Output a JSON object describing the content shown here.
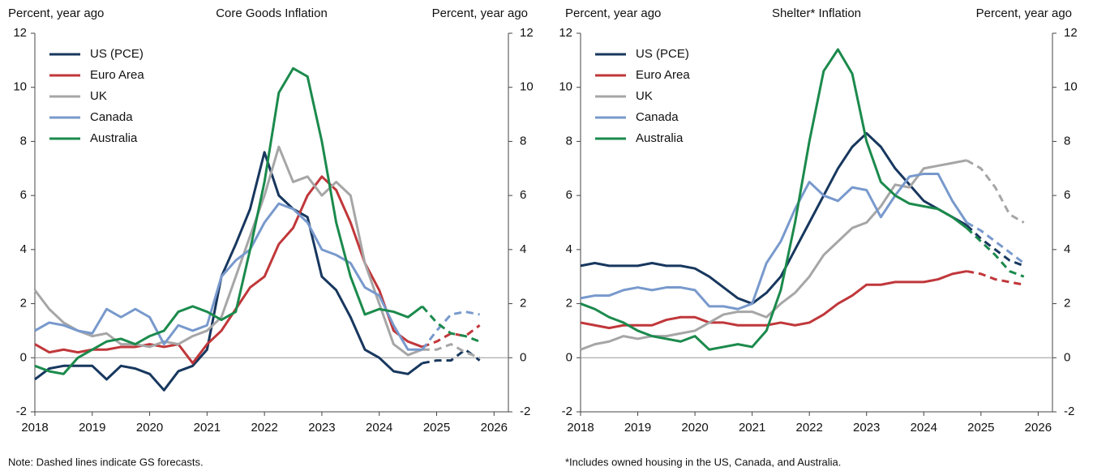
{
  "chart_data": [
    {
      "type": "line",
      "title": "Core Goods Inflation",
      "y_label": "Percent, year ago",
      "y2_label": "Percent, year ago",
      "note": "Note: Dashed lines indicate GS forecasts.",
      "legend": "upper left",
      "zero_line": true,
      "x": [
        2018,
        2018.25,
        2018.5,
        2018.75,
        2019,
        2019.25,
        2019.5,
        2019.75,
        2020,
        2020.25,
        2020.5,
        2020.75,
        2021,
        2021.25,
        2021.5,
        2021.75,
        2022,
        2022.25,
        2022.5,
        2022.75,
        2023,
        2023.25,
        2023.5,
        2023.75,
        2024,
        2024.25,
        2024.5,
        2024.75,
        2025,
        2025.25,
        2025.5,
        2025.75
      ],
      "xlim": [
        2018,
        2026.25
      ],
      "xticks": [
        2018,
        2019,
        2020,
        2021,
        2022,
        2023,
        2024,
        2025,
        2026
      ],
      "ylim": [
        -2,
        12
      ],
      "yticks": [
        -2,
        0,
        2,
        4,
        6,
        8,
        10,
        12
      ],
      "y2lim": [
        -2,
        12
      ],
      "y2ticks": [
        -2,
        0,
        2,
        4,
        6,
        8,
        10,
        12
      ],
      "series": [
        {
          "name": "US (PCE)",
          "color": "#17375e",
          "values": [
            -0.8,
            -0.4,
            -0.3,
            -0.3,
            -0.3,
            -0.8,
            -0.3,
            -0.4,
            -0.6,
            -1.2,
            -0.5,
            -0.3,
            0.3,
            3.0,
            4.2,
            5.5,
            7.6,
            6.0,
            5.5,
            5.2,
            3.0,
            2.5,
            1.5,
            0.3,
            0.0,
            -0.5,
            -0.6,
            -0.2,
            null,
            null,
            null,
            null
          ],
          "forecast_values": [
            null,
            null,
            null,
            null,
            null,
            null,
            null,
            null,
            null,
            null,
            null,
            null,
            null,
            null,
            null,
            null,
            null,
            null,
            null,
            null,
            null,
            null,
            null,
            null,
            null,
            null,
            null,
            -0.2,
            -0.1,
            -0.1,
            0.3,
            -0.1
          ]
        },
        {
          "name": "Euro Area",
          "color": "#c0373a",
          "values": [
            0.5,
            0.2,
            0.3,
            0.2,
            0.3,
            0.3,
            0.4,
            0.4,
            0.5,
            0.4,
            0.5,
            -0.2,
            0.5,
            1.0,
            1.8,
            2.6,
            3.0,
            4.2,
            4.8,
            6.0,
            6.7,
            6.2,
            5.0,
            3.5,
            2.5,
            1.0,
            0.6,
            0.4,
            null,
            null,
            null,
            null
          ],
          "forecast_values": [
            null,
            null,
            null,
            null,
            null,
            null,
            null,
            null,
            null,
            null,
            null,
            null,
            null,
            null,
            null,
            null,
            null,
            null,
            null,
            null,
            null,
            null,
            null,
            null,
            null,
            null,
            null,
            0.4,
            0.6,
            0.9,
            0.8,
            1.2
          ]
        },
        {
          "name": "UK",
          "color": "#a6a6a6",
          "values": [
            2.5,
            1.8,
            1.3,
            1.0,
            0.8,
            0.9,
            0.5,
            0.5,
            0.4,
            0.6,
            0.5,
            0.8,
            1.0,
            1.5,
            3.0,
            4.5,
            6.0,
            7.8,
            6.5,
            6.7,
            6.0,
            6.5,
            6.0,
            3.5,
            2.0,
            0.5,
            0.1,
            0.3,
            null,
            null,
            null,
            null
          ],
          "forecast_values": [
            null,
            null,
            null,
            null,
            null,
            null,
            null,
            null,
            null,
            null,
            null,
            null,
            null,
            null,
            null,
            null,
            null,
            null,
            null,
            null,
            null,
            null,
            null,
            null,
            null,
            null,
            null,
            0.3,
            0.3,
            0.5,
            0.2,
            0.0
          ]
        },
        {
          "name": "Canada",
          "color": "#7899cc",
          "values": [
            1.0,
            1.3,
            1.2,
            1.0,
            0.9,
            1.8,
            1.5,
            1.8,
            1.5,
            0.5,
            1.2,
            1.0,
            1.2,
            3.0,
            3.6,
            4.0,
            5.0,
            5.7,
            5.5,
            5.0,
            4.0,
            3.8,
            3.5,
            2.6,
            2.3,
            1.2,
            0.3,
            0.3,
            null,
            null,
            null,
            null
          ],
          "forecast_values": [
            null,
            null,
            null,
            null,
            null,
            null,
            null,
            null,
            null,
            null,
            null,
            null,
            null,
            null,
            null,
            null,
            null,
            null,
            null,
            null,
            null,
            null,
            null,
            null,
            null,
            null,
            null,
            0.3,
            1.0,
            1.6,
            1.7,
            1.6
          ]
        },
        {
          "name": "Australia",
          "color": "#1b8a4c",
          "values": [
            -0.3,
            -0.5,
            -0.6,
            0.0,
            0.3,
            0.6,
            0.7,
            0.5,
            0.8,
            1.0,
            1.7,
            1.9,
            1.7,
            1.4,
            1.7,
            4.0,
            6.5,
            9.8,
            10.7,
            10.4,
            8.0,
            5.0,
            3.0,
            1.6,
            1.8,
            1.7,
            1.5,
            1.9,
            null,
            null,
            null,
            null
          ],
          "forecast_values": [
            null,
            null,
            null,
            null,
            null,
            null,
            null,
            null,
            null,
            null,
            null,
            null,
            null,
            null,
            null,
            null,
            null,
            null,
            null,
            null,
            null,
            null,
            null,
            null,
            null,
            null,
            null,
            1.9,
            1.3,
            0.9,
            0.8,
            0.6
          ]
        }
      ]
    },
    {
      "type": "line",
      "title": "Shelter* Inflation",
      "y_label": "Percent, year ago",
      "y2_label": "Percent, year ago",
      "note": "*Includes owned housing in the US, Canada, and Australia.",
      "legend": "upper left",
      "zero_line": true,
      "x": [
        2018,
        2018.25,
        2018.5,
        2018.75,
        2019,
        2019.25,
        2019.5,
        2019.75,
        2020,
        2020.25,
        2020.5,
        2020.75,
        2021,
        2021.25,
        2021.5,
        2021.75,
        2022,
        2022.25,
        2022.5,
        2022.75,
        2023,
        2023.25,
        2023.5,
        2023.75,
        2024,
        2024.25,
        2024.5,
        2024.75,
        2025,
        2025.25,
        2025.5,
        2025.75
      ],
      "xlim": [
        2018,
        2026.25
      ],
      "xticks": [
        2018,
        2019,
        2020,
        2021,
        2022,
        2023,
        2024,
        2025,
        2026
      ],
      "ylim": [
        -2,
        12
      ],
      "yticks": [
        -2,
        0,
        2,
        4,
        6,
        8,
        10,
        12
      ],
      "y2lim": [
        -2,
        12
      ],
      "y2ticks": [
        -2,
        0,
        2,
        4,
        6,
        8,
        10,
        12
      ],
      "series": [
        {
          "name": "US (PCE)",
          "color": "#17375e",
          "values": [
            3.4,
            3.5,
            3.4,
            3.4,
            3.4,
            3.5,
            3.4,
            3.4,
            3.3,
            3.0,
            2.6,
            2.2,
            2.0,
            2.4,
            3.0,
            4.0,
            5.0,
            6.0,
            7.0,
            7.8,
            8.3,
            7.8,
            7.0,
            6.4,
            5.8,
            5.5,
            5.2,
            4.9,
            null,
            null,
            null,
            null
          ],
          "forecast_values": [
            null,
            null,
            null,
            null,
            null,
            null,
            null,
            null,
            null,
            null,
            null,
            null,
            null,
            null,
            null,
            null,
            null,
            null,
            null,
            null,
            null,
            null,
            null,
            null,
            null,
            null,
            null,
            4.9,
            4.4,
            4.0,
            3.6,
            3.4
          ]
        },
        {
          "name": "Euro Area",
          "color": "#c0373a",
          "values": [
            1.3,
            1.2,
            1.1,
            1.2,
            1.2,
            1.2,
            1.4,
            1.5,
            1.5,
            1.3,
            1.3,
            1.2,
            1.2,
            1.2,
            1.3,
            1.2,
            1.3,
            1.6,
            2.0,
            2.3,
            2.7,
            2.7,
            2.8,
            2.8,
            2.8,
            2.9,
            3.1,
            3.2,
            null,
            null,
            null,
            null
          ],
          "forecast_values": [
            null,
            null,
            null,
            null,
            null,
            null,
            null,
            null,
            null,
            null,
            null,
            null,
            null,
            null,
            null,
            null,
            null,
            null,
            null,
            null,
            null,
            null,
            null,
            null,
            null,
            null,
            null,
            3.2,
            3.1,
            2.9,
            2.8,
            2.7
          ]
        },
        {
          "name": "UK",
          "color": "#a6a6a6",
          "values": [
            0.3,
            0.5,
            0.6,
            0.8,
            0.7,
            0.8,
            0.8,
            0.9,
            1.0,
            1.3,
            1.6,
            1.7,
            1.7,
            1.5,
            2.0,
            2.4,
            3.0,
            3.8,
            4.3,
            4.8,
            5.0,
            5.6,
            6.4,
            6.3,
            7.0,
            7.1,
            7.2,
            7.3,
            null,
            null,
            null,
            null
          ],
          "forecast_values": [
            null,
            null,
            null,
            null,
            null,
            null,
            null,
            null,
            null,
            null,
            null,
            null,
            null,
            null,
            null,
            null,
            null,
            null,
            null,
            null,
            null,
            null,
            null,
            null,
            null,
            null,
            null,
            7.3,
            7.0,
            6.3,
            5.3,
            5.0
          ]
        },
        {
          "name": "Canada",
          "color": "#7899cc",
          "values": [
            2.2,
            2.3,
            2.3,
            2.5,
            2.6,
            2.5,
            2.6,
            2.6,
            2.5,
            1.9,
            1.9,
            1.8,
            2.0,
            3.5,
            4.3,
            5.5,
            6.5,
            6.0,
            5.8,
            6.3,
            6.2,
            5.2,
            6.0,
            6.7,
            6.8,
            6.8,
            5.8,
            5.0,
            null,
            null,
            null,
            null
          ],
          "forecast_values": [
            null,
            null,
            null,
            null,
            null,
            null,
            null,
            null,
            null,
            null,
            null,
            null,
            null,
            null,
            null,
            null,
            null,
            null,
            null,
            null,
            null,
            null,
            null,
            null,
            null,
            null,
            null,
            5.0,
            4.7,
            4.3,
            3.9,
            3.5
          ]
        },
        {
          "name": "Australia",
          "color": "#1b8a4c",
          "values": [
            2.0,
            1.8,
            1.5,
            1.3,
            1.0,
            0.8,
            0.7,
            0.6,
            0.8,
            0.3,
            0.4,
            0.5,
            0.4,
            1.0,
            2.5,
            5.0,
            8.0,
            10.6,
            11.4,
            10.5,
            8.0,
            6.5,
            6.0,
            5.7,
            5.6,
            5.5,
            5.2,
            4.8,
            null,
            null,
            null,
            null
          ],
          "forecast_values": [
            null,
            null,
            null,
            null,
            null,
            null,
            null,
            null,
            null,
            null,
            null,
            null,
            null,
            null,
            null,
            null,
            null,
            null,
            null,
            null,
            null,
            null,
            null,
            null,
            null,
            null,
            null,
            4.8,
            4.3,
            3.8,
            3.2,
            3.0
          ]
        }
      ]
    }
  ]
}
